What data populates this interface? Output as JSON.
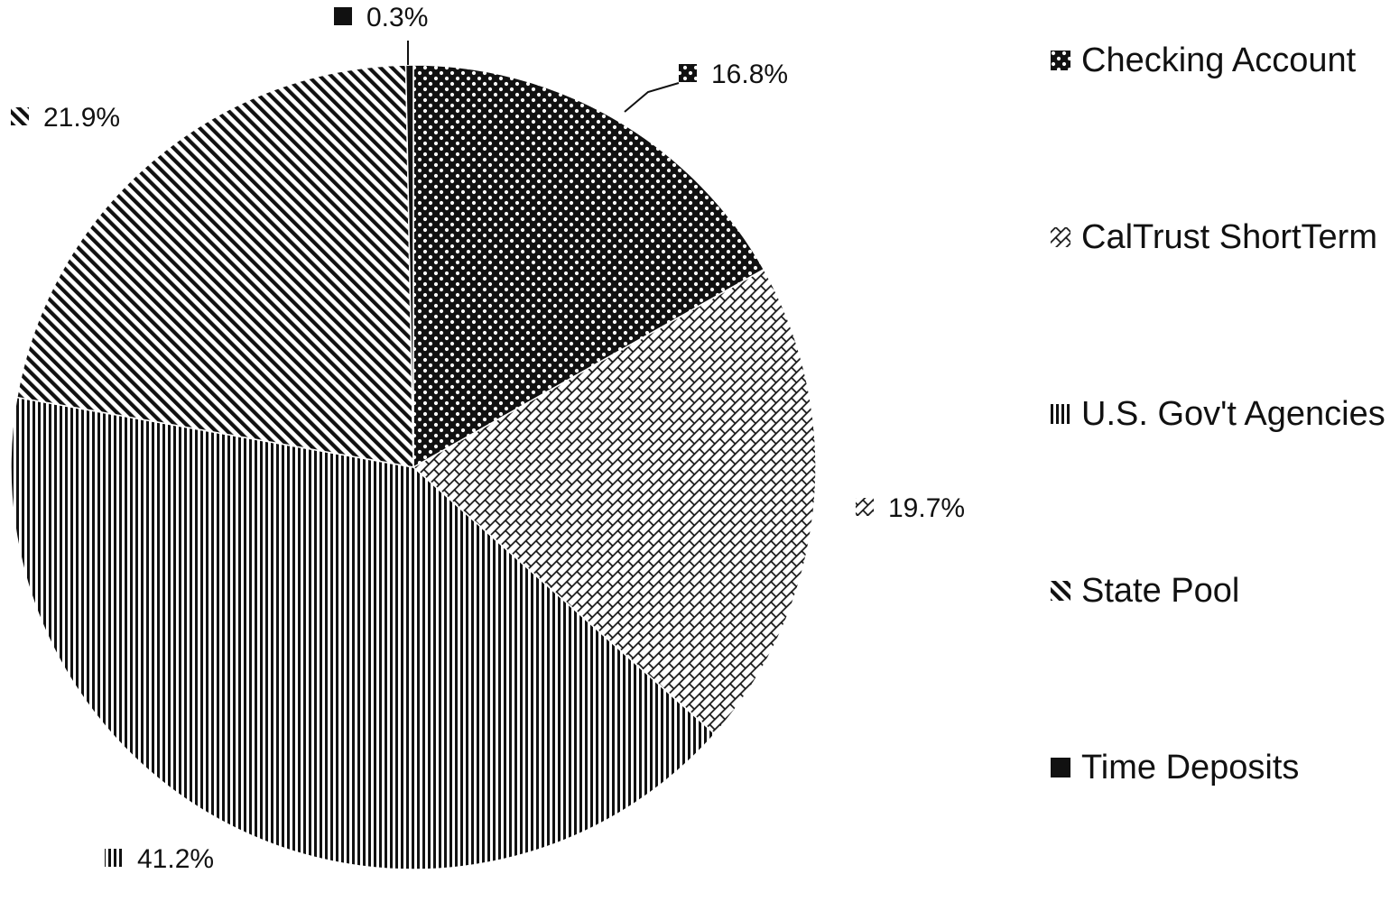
{
  "chart_data": {
    "type": "pie",
    "title": "",
    "categories": [
      "Checking Account",
      "CalTrust ShortTerm",
      "U.S. Gov't Agencies",
      "State Pool",
      "Time Deposits"
    ],
    "values": [
      16.8,
      19.7,
      41.2,
      21.9,
      0.3
    ],
    "value_labels": [
      "16.8%",
      "19.7%",
      "41.2%",
      "21.9%",
      "0.3%"
    ],
    "fills": [
      "dots",
      "bricks",
      "vertical-lines",
      "diagonal-lines",
      "solid"
    ],
    "colors": {
      "ink": "#111111",
      "background": "#ffffff"
    },
    "start_angle": "12 o'clock",
    "direction": "clockwise",
    "legend_position": "right"
  }
}
